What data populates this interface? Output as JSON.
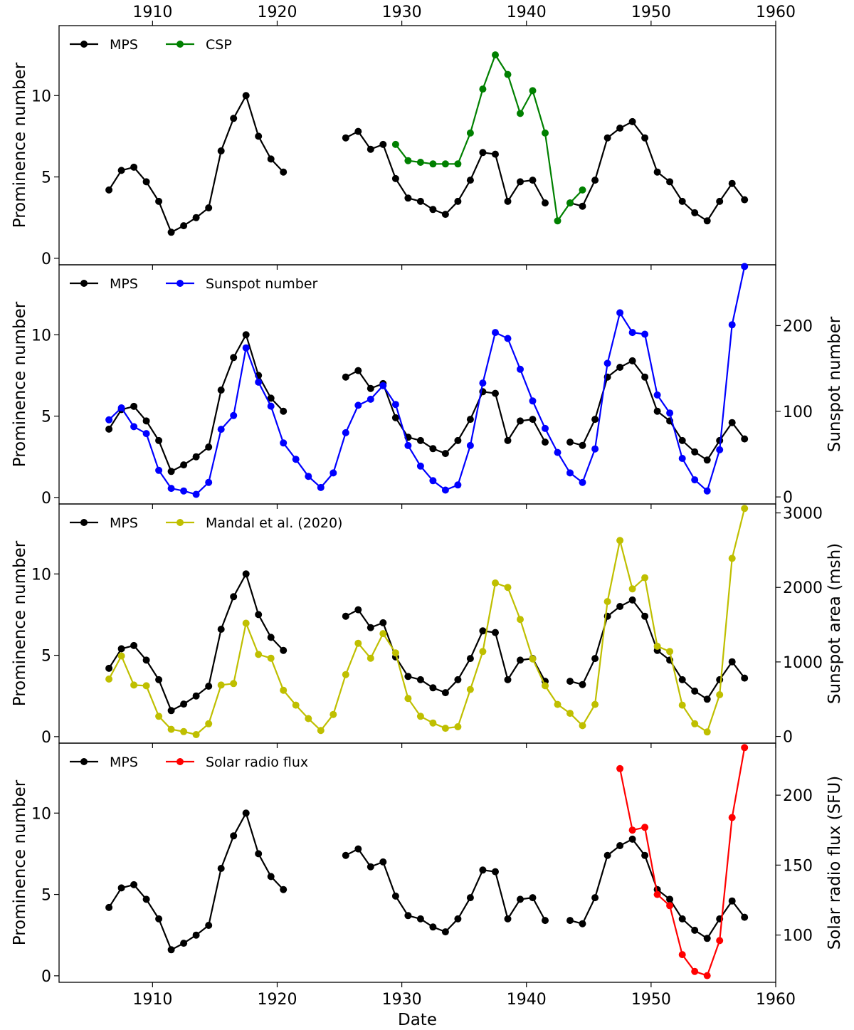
{
  "figure": {
    "xlabel": "Date",
    "xlim": [
      1902.5,
      1960
    ],
    "xticks": [
      1910,
      1920,
      1930,
      1940,
      1950,
      1960
    ]
  },
  "chart_data": [
    {
      "type": "line",
      "ylabel": "Prominence number",
      "ylim": [
        -0.4,
        14.3
      ],
      "yticks": [
        0,
        5,
        10
      ],
      "legend": "top-left",
      "series": [
        {
          "name": "MPS",
          "color": "#000000",
          "segments": [
            {
              "x": [
                1906.5,
                1907.5,
                1908.5,
                1909.5,
                1910.5,
                1911.5,
                1912.5,
                1913.5,
                1914.5,
                1915.5,
                1916.5,
                1917.5,
                1918.5,
                1919.5,
                1920.5
              ],
              "y": [
                4.2,
                5.4,
                5.6,
                4.7,
                3.5,
                1.6,
                2.0,
                2.5,
                3.1,
                6.6,
                8.6,
                10.0,
                7.5,
                6.1,
                5.3
              ]
            },
            {
              "x": [
                1925.5,
                1926.5,
                1927.5,
                1928.5,
                1929.5,
                1930.5,
                1931.5,
                1932.5,
                1933.5,
                1934.5,
                1935.5,
                1936.5,
                1937.5,
                1938.5,
                1939.5,
                1940.5,
                1941.5
              ],
              "y": [
                7.4,
                7.8,
                6.7,
                7.0,
                4.9,
                3.7,
                3.5,
                3.0,
                2.7,
                3.5,
                4.8,
                6.5,
                6.4,
                3.5,
                4.7,
                4.8,
                3.4
              ]
            },
            {
              "x": [
                1943.5,
                1944.5,
                1945.5,
                1946.5,
                1947.5,
                1948.5,
                1949.5,
                1950.5,
                1951.5,
                1952.5,
                1953.5,
                1954.5,
                1955.5,
                1956.5,
                1957.5
              ],
              "y": [
                3.4,
                3.2,
                4.8,
                7.4,
                8.0,
                8.4,
                7.4,
                5.3,
                4.7,
                3.5,
                2.8,
                2.3,
                3.5,
                4.6,
                3.6
              ]
            }
          ]
        },
        {
          "name": "CSP",
          "color": "#008000",
          "segments": [
            {
              "x": [
                1929.5,
                1930.5,
                1931.5,
                1932.5,
                1933.5,
                1934.5,
                1935.5,
                1936.5,
                1937.5,
                1938.5,
                1939.5,
                1940.5,
                1941.5,
                1942.5,
                1943.5,
                1944.5
              ],
              "y": [
                7.0,
                6.0,
                5.9,
                5.8,
                5.8,
                5.8,
                7.7,
                10.4,
                12.5,
                11.3,
                8.9,
                10.3,
                7.7,
                2.3,
                3.4,
                4.2
              ]
            }
          ]
        }
      ]
    },
    {
      "type": "line",
      "ylabel": "Prominence number",
      "ylabel_right": "Sunspot number",
      "ylim": [
        -0.4,
        14.3
      ],
      "yticks": [
        0,
        5,
        10
      ],
      "ylim_right": [
        -8.2,
        271
      ],
      "yticks_right": [
        0,
        100,
        200
      ],
      "legend": "top-left",
      "series": [
        {
          "name": "MPS",
          "color": "#000000",
          "segments": [
            {
              "x": [
                1906.5,
                1907.5,
                1908.5,
                1909.5,
                1910.5,
                1911.5,
                1912.5,
                1913.5,
                1914.5,
                1915.5,
                1916.5,
                1917.5,
                1918.5,
                1919.5,
                1920.5
              ],
              "y": [
                4.2,
                5.4,
                5.6,
                4.7,
                3.5,
                1.6,
                2.0,
                2.5,
                3.1,
                6.6,
                8.6,
                10.0,
                7.5,
                6.1,
                5.3
              ]
            },
            {
              "x": [
                1925.5,
                1926.5,
                1927.5,
                1928.5,
                1929.5,
                1930.5,
                1931.5,
                1932.5,
                1933.5,
                1934.5,
                1935.5,
                1936.5,
                1937.5,
                1938.5,
                1939.5,
                1940.5,
                1941.5
              ],
              "y": [
                7.4,
                7.8,
                6.7,
                7.0,
                4.9,
                3.7,
                3.5,
                3.0,
                2.7,
                3.5,
                4.8,
                6.5,
                6.4,
                3.5,
                4.7,
                4.8,
                3.4
              ]
            },
            {
              "x": [
                1943.5,
                1944.5,
                1945.5,
                1946.5,
                1947.5,
                1948.5,
                1949.5,
                1950.5,
                1951.5,
                1952.5,
                1953.5,
                1954.5,
                1955.5,
                1956.5,
                1957.5
              ],
              "y": [
                3.4,
                3.2,
                4.8,
                7.4,
                8.0,
                8.4,
                7.4,
                5.3,
                4.7,
                3.5,
                2.8,
                2.3,
                3.5,
                4.6,
                3.6
              ]
            }
          ]
        },
        {
          "name": "Sunspot number",
          "color": "#0000ff",
          "axis": "right",
          "segments": [
            {
              "x": [
                1906.5,
                1907.5,
                1908.5,
                1909.5,
                1910.5,
                1911.5,
                1912.5,
                1913.5,
                1914.5,
                1915.5,
                1916.5,
                1917.5,
                1918.5,
                1919.5,
                1920.5,
                1921.5,
                1922.5,
                1923.5,
                1924.5,
                1925.5,
                1926.5,
                1927.5,
                1928.5,
                1929.5,
                1930.5,
                1931.5,
                1932.5,
                1933.5,
                1934.5,
                1935.5,
                1936.5,
                1937.5,
                1938.5,
                1939.5,
                1940.5,
                1941.5,
                1942.5,
                1943.5,
                1944.5,
                1945.5,
                1946.5,
                1947.5,
                1948.5,
                1949.5,
                1950.5,
                1951.5,
                1952.5,
                1953.5,
                1954.5,
                1955.5,
                1956.5,
                1957.5
              ],
              "y": [
                90,
                104,
                82,
                74,
                31,
                10,
                7,
                3,
                17,
                79,
                95,
                174,
                134,
                106,
                63,
                44,
                24,
                11,
                28,
                75,
                107,
                114,
                130,
                108,
                60,
                36,
                19,
                8,
                14,
                60,
                133,
                192,
                185,
                149,
                112,
                80,
                52,
                28,
                17,
                56,
                156,
                215,
                192,
                190,
                119,
                98,
                45,
                20,
                7,
                55,
                201,
                269
              ]
            }
          ]
        }
      ]
    },
    {
      "type": "line",
      "ylabel": "Prominence number",
      "ylabel_right": "Sunspot area (msh)",
      "ylim": [
        -0.4,
        14.3
      ],
      "yticks": [
        0,
        5,
        10
      ],
      "ylim_right": [
        -90,
        3120
      ],
      "yticks_right": [
        0,
        1000,
        2000,
        3000
      ],
      "legend": "top-left",
      "series": [
        {
          "name": "MPS",
          "color": "#000000",
          "segments": [
            {
              "x": [
                1906.5,
                1907.5,
                1908.5,
                1909.5,
                1910.5,
                1911.5,
                1912.5,
                1913.5,
                1914.5,
                1915.5,
                1916.5,
                1917.5,
                1918.5,
                1919.5,
                1920.5
              ],
              "y": [
                4.2,
                5.4,
                5.6,
                4.7,
                3.5,
                1.6,
                2.0,
                2.5,
                3.1,
                6.6,
                8.6,
                10.0,
                7.5,
                6.1,
                5.3
              ]
            },
            {
              "x": [
                1925.5,
                1926.5,
                1927.5,
                1928.5,
                1929.5,
                1930.5,
                1931.5,
                1932.5,
                1933.5,
                1934.5,
                1935.5,
                1936.5,
                1937.5,
                1938.5,
                1939.5,
                1940.5,
                1941.5
              ],
              "y": [
                7.4,
                7.8,
                6.7,
                7.0,
                4.9,
                3.7,
                3.5,
                3.0,
                2.7,
                3.5,
                4.8,
                6.5,
                6.4,
                3.5,
                4.7,
                4.8,
                3.4
              ]
            },
            {
              "x": [
                1943.5,
                1944.5,
                1945.5,
                1946.5,
                1947.5,
                1948.5,
                1949.5,
                1950.5,
                1951.5,
                1952.5,
                1953.5,
                1954.5,
                1955.5,
                1956.5,
                1957.5
              ],
              "y": [
                3.4,
                3.2,
                4.8,
                7.4,
                8.0,
                8.4,
                7.4,
                5.3,
                4.7,
                3.5,
                2.8,
                2.3,
                3.5,
                4.6,
                3.6
              ]
            }
          ]
        },
        {
          "name": "Mandal et al. (2020)",
          "color": "#bfbf00",
          "axis": "right",
          "segments": [
            {
              "x": [
                1906.5,
                1907.5,
                1908.5,
                1909.5,
                1910.5,
                1911.5,
                1912.5,
                1913.5,
                1914.5,
                1915.5,
                1916.5,
                1917.5,
                1918.5,
                1919.5,
                1920.5,
                1921.5,
                1922.5,
                1923.5,
                1924.5,
                1925.5,
                1926.5,
                1927.5,
                1928.5,
                1929.5,
                1930.5,
                1931.5,
                1932.5,
                1933.5,
                1934.5,
                1935.5,
                1936.5,
                1937.5,
                1938.5,
                1939.5,
                1940.5,
                1941.5,
                1942.5,
                1943.5,
                1944.5,
                1945.5,
                1946.5,
                1947.5,
                1948.5,
                1949.5,
                1950.5,
                1951.5,
                1952.5,
                1953.5,
                1954.5,
                1955.5,
                1956.5,
                1957.5
              ],
              "y": [
                770,
                1080,
                690,
                680,
                270,
                95,
                65,
                25,
                170,
                690,
                710,
                1520,
                1100,
                1050,
                620,
                420,
                240,
                80,
                295,
                830,
                1250,
                1050,
                1380,
                1120,
                510,
                270,
                180,
                110,
                130,
                630,
                1140,
                2060,
                2000,
                1570,
                1040,
                680,
                430,
                310,
                145,
                430,
                1810,
                2630,
                1980,
                2130,
                1210,
                1140,
                420,
                170,
                60,
                560,
                2390,
                3060
              ]
            }
          ]
        }
      ]
    },
    {
      "type": "line",
      "ylabel": "Prominence number",
      "ylabel_right": "Solar radio flux (SFU)",
      "ylim": [
        -0.4,
        14.3
      ],
      "yticks": [
        0,
        5,
        10
      ],
      "ylim_right": [
        66.2,
        237.2
      ],
      "yticks_right": [
        100,
        150,
        200
      ],
      "legend": "top-left",
      "series": [
        {
          "name": "MPS",
          "color": "#000000",
          "segments": [
            {
              "x": [
                1906.5,
                1907.5,
                1908.5,
                1909.5,
                1910.5,
                1911.5,
                1912.5,
                1913.5,
                1914.5,
                1915.5,
                1916.5,
                1917.5,
                1918.5,
                1919.5,
                1920.5
              ],
              "y": [
                4.2,
                5.4,
                5.6,
                4.7,
                3.5,
                1.6,
                2.0,
                2.5,
                3.1,
                6.6,
                8.6,
                10.0,
                7.5,
                6.1,
                5.3
              ]
            },
            {
              "x": [
                1925.5,
                1926.5,
                1927.5,
                1928.5,
                1929.5,
                1930.5,
                1931.5,
                1932.5,
                1933.5,
                1934.5,
                1935.5,
                1936.5,
                1937.5,
                1938.5,
                1939.5,
                1940.5,
                1941.5
              ],
              "y": [
                7.4,
                7.8,
                6.7,
                7.0,
                4.9,
                3.7,
                3.5,
                3.0,
                2.7,
                3.5,
                4.8,
                6.5,
                6.4,
                3.5,
                4.7,
                4.8,
                3.4
              ]
            },
            {
              "x": [
                1943.5,
                1944.5,
                1945.5,
                1946.5,
                1947.5,
                1948.5,
                1949.5,
                1950.5,
                1951.5,
                1952.5,
                1953.5,
                1954.5,
                1955.5,
                1956.5,
                1957.5
              ],
              "y": [
                3.4,
                3.2,
                4.8,
                7.4,
                8.0,
                8.4,
                7.4,
                5.3,
                4.7,
                3.5,
                2.8,
                2.3,
                3.5,
                4.6,
                3.6
              ]
            }
          ]
        },
        {
          "name": "Solar radio flux",
          "color": "#ff0000",
          "axis": "right",
          "segments": [
            {
              "x": [
                1947.5,
                1948.5,
                1949.5,
                1950.5,
                1951.5,
                1952.5,
                1953.5,
                1954.5,
                1955.5,
                1956.5,
                1957.5
              ],
              "y": [
                219,
                175,
                177,
                129,
                121,
                86,
                74,
                71,
                96,
                184,
                234
              ]
            }
          ]
        }
      ]
    }
  ]
}
